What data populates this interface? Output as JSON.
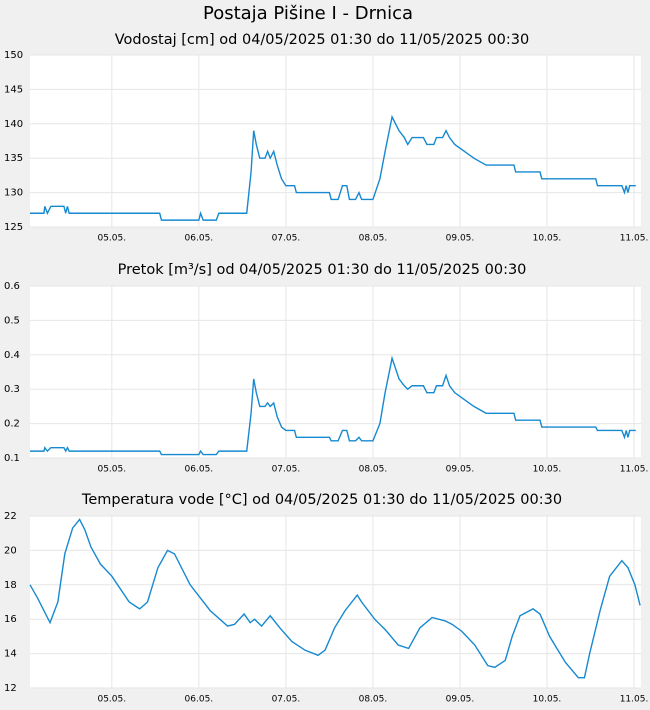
{
  "page_title": "Postaja Pišine I - Drnica",
  "chart_data": [
    {
      "type": "line",
      "title": "Vodostaj [cm] od 04/05/2025 01:30 do 11/05/2025 00:30",
      "color": "#1689d0",
      "grid": true,
      "xlim": [
        0.06,
        7.08
      ],
      "ylim": [
        125,
        150
      ],
      "yticks": [
        125,
        130,
        135,
        140,
        145,
        150
      ],
      "xticks": [
        {
          "value": 1,
          "label": "05.05."
        },
        {
          "value": 2,
          "label": "06.05."
        },
        {
          "value": 3,
          "label": "07.05."
        },
        {
          "value": 4,
          "label": "08.05."
        },
        {
          "value": 5,
          "label": "09.05."
        },
        {
          "value": 6,
          "label": "10.05."
        },
        {
          "value": 7,
          "label": "11.05."
        }
      ],
      "x": [
        0.06,
        0.22,
        0.23,
        0.26,
        0.3,
        0.45,
        0.47,
        0.49,
        0.51,
        1.55,
        1.57,
        2.0,
        2.02,
        2.05,
        2.2,
        2.23,
        2.55,
        2.6,
        2.63,
        2.66,
        2.7,
        2.76,
        2.79,
        2.82,
        2.86,
        2.9,
        2.95,
        3.0,
        3.1,
        3.12,
        3.5,
        3.52,
        3.6,
        3.65,
        3.7,
        3.73,
        3.8,
        3.84,
        3.87,
        4.0,
        4.08,
        4.14,
        4.22,
        4.26,
        4.3,
        4.36,
        4.4,
        4.45,
        4.58,
        4.62,
        4.7,
        4.73,
        4.8,
        4.84,
        4.88,
        4.94,
        5.05,
        5.16,
        5.3,
        5.62,
        5.64,
        5.92,
        5.94,
        6.56,
        6.58,
        6.86,
        6.89,
        6.91,
        6.93,
        6.95,
        7.02
      ],
      "values": [
        127,
        127,
        128,
        127,
        128,
        128,
        127,
        128,
        127,
        127,
        126,
        126,
        127,
        126,
        126,
        127,
        127,
        133,
        139,
        137,
        135,
        135,
        136,
        135,
        136,
        134,
        132,
        131,
        131,
        130,
        130,
        129,
        129,
        131,
        131,
        129,
        129,
        130,
        129,
        129,
        132,
        136,
        141,
        140,
        139,
        138,
        137,
        138,
        138,
        137,
        137,
        138,
        138,
        139,
        138,
        137,
        136,
        135,
        134,
        134,
        133,
        133,
        132,
        132,
        131,
        131,
        130,
        131,
        130,
        131,
        131
      ]
    },
    {
      "type": "line",
      "title": "Pretok [m³/s] od 04/05/2025 01:30 do 11/05/2025 00:30",
      "color": "#1689d0",
      "grid": true,
      "xlim": [
        0.06,
        7.08
      ],
      "ylim": [
        0.1,
        0.6
      ],
      "yticks": [
        0.1,
        0.2,
        0.3,
        0.4,
        0.5,
        0.6
      ],
      "xticks": [
        {
          "value": 1,
          "label": "05.05."
        },
        {
          "value": 2,
          "label": "06.05."
        },
        {
          "value": 3,
          "label": "07.05."
        },
        {
          "value": 4,
          "label": "08.05."
        },
        {
          "value": 5,
          "label": "09.05."
        },
        {
          "value": 6,
          "label": "10.05."
        },
        {
          "value": 7,
          "label": "11.05."
        }
      ],
      "x": [
        0.06,
        0.22,
        0.23,
        0.26,
        0.3,
        0.45,
        0.47,
        0.49,
        0.51,
        1.55,
        1.57,
        2.0,
        2.02,
        2.05,
        2.2,
        2.23,
        2.55,
        2.6,
        2.63,
        2.66,
        2.7,
        2.76,
        2.79,
        2.82,
        2.86,
        2.9,
        2.95,
        3.0,
        3.1,
        3.12,
        3.5,
        3.52,
        3.6,
        3.65,
        3.7,
        3.73,
        3.8,
        3.84,
        3.87,
        4.0,
        4.08,
        4.14,
        4.22,
        4.26,
        4.3,
        4.36,
        4.4,
        4.45,
        4.58,
        4.62,
        4.7,
        4.73,
        4.8,
        4.84,
        4.88,
        4.94,
        5.05,
        5.16,
        5.3,
        5.62,
        5.64,
        5.92,
        5.94,
        6.56,
        6.58,
        6.86,
        6.89,
        6.91,
        6.93,
        6.95,
        7.02
      ],
      "values": [
        0.12,
        0.12,
        0.13,
        0.12,
        0.13,
        0.13,
        0.12,
        0.13,
        0.12,
        0.12,
        0.11,
        0.11,
        0.12,
        0.11,
        0.11,
        0.12,
        0.12,
        0.23,
        0.33,
        0.29,
        0.25,
        0.25,
        0.26,
        0.25,
        0.26,
        0.22,
        0.19,
        0.18,
        0.18,
        0.16,
        0.16,
        0.15,
        0.15,
        0.18,
        0.18,
        0.15,
        0.15,
        0.16,
        0.15,
        0.15,
        0.2,
        0.29,
        0.39,
        0.36,
        0.33,
        0.31,
        0.3,
        0.31,
        0.31,
        0.29,
        0.29,
        0.31,
        0.31,
        0.34,
        0.31,
        0.29,
        0.27,
        0.25,
        0.23,
        0.23,
        0.21,
        0.21,
        0.19,
        0.19,
        0.18,
        0.18,
        0.16,
        0.18,
        0.16,
        0.18,
        0.18
      ]
    },
    {
      "type": "line",
      "title": "Temperatura vode [°C] od 04/05/2025 01:30 do 11/05/2025 00:30",
      "color": "#1689d0",
      "grid": true,
      "xlim": [
        0.06,
        7.08
      ],
      "ylim": [
        12,
        22
      ],
      "yticks": [
        12,
        14,
        16,
        18,
        20,
        22
      ],
      "xticks": [
        {
          "value": 1,
          "label": "05.05."
        },
        {
          "value": 2,
          "label": "06.05."
        },
        {
          "value": 3,
          "label": "07.05."
        },
        {
          "value": 4,
          "label": "08.05."
        },
        {
          "value": 5,
          "label": "09.05."
        },
        {
          "value": 6,
          "label": "10.05."
        },
        {
          "value": 7,
          "label": "11.05."
        }
      ],
      "x": [
        0.06,
        0.15,
        0.29,
        0.38,
        0.46,
        0.55,
        0.63,
        0.69,
        0.76,
        0.87,
        1.0,
        1.2,
        1.32,
        1.41,
        1.53,
        1.64,
        1.72,
        1.9,
        2.13,
        2.33,
        2.41,
        2.52,
        2.59,
        2.64,
        2.72,
        2.82,
        2.93,
        3.07,
        3.22,
        3.37,
        3.45,
        3.56,
        3.68,
        3.82,
        3.87,
        4.02,
        4.14,
        4.29,
        4.41,
        4.54,
        4.68,
        4.83,
        4.91,
        5.02,
        5.17,
        5.32,
        5.4,
        5.52,
        5.6,
        5.69,
        5.84,
        5.92,
        6.03,
        6.21,
        6.36,
        6.43,
        6.49,
        6.61,
        6.72,
        6.86,
        6.93,
        7.01,
        7.07
      ],
      "values": [
        18,
        17.2,
        15.8,
        17,
        19.8,
        21.3,
        21.8,
        21.2,
        20.2,
        19.2,
        18.5,
        17,
        16.6,
        17,
        19,
        20,
        19.8,
        18,
        16.5,
        15.6,
        15.7,
        16.3,
        15.8,
        16,
        15.6,
        16.2,
        15.5,
        14.7,
        14.2,
        13.9,
        14.2,
        15.5,
        16.5,
        17.4,
        17,
        16,
        15.4,
        14.5,
        14.3,
        15.5,
        16.1,
        15.9,
        15.7,
        15.3,
        14.5,
        13.3,
        13.2,
        13.6,
        15,
        16.2,
        16.6,
        16.3,
        15,
        13.5,
        12.6,
        12.6,
        14,
        16.5,
        18.5,
        19.4,
        19,
        18,
        16.8
      ]
    }
  ]
}
